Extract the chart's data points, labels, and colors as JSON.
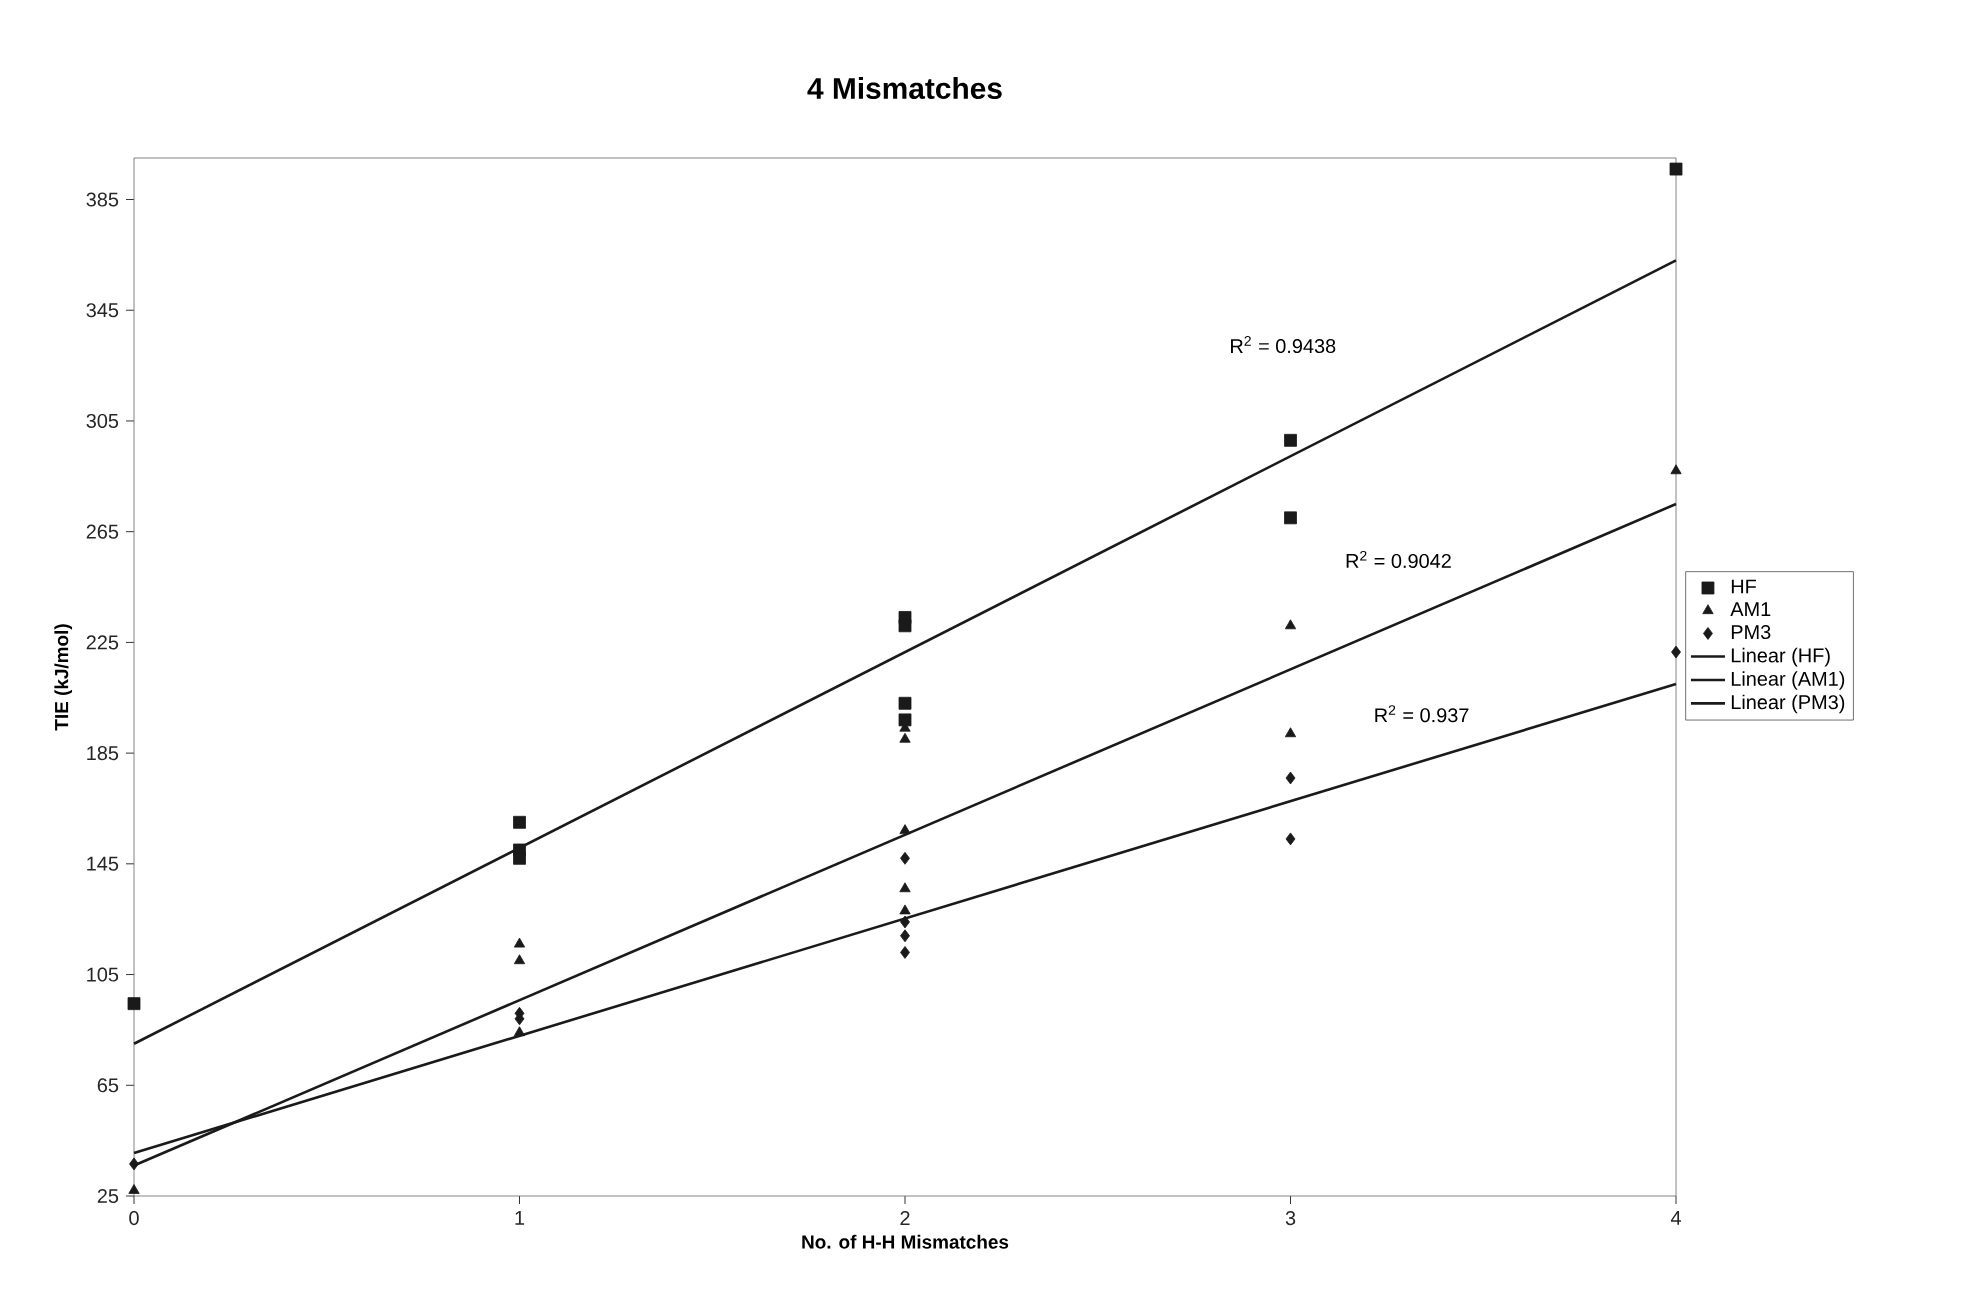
{
  "chart_data": {
    "type": "scatter",
    "title": "4 Mismatches",
    "xlabel": "No. of H-H Mismatches",
    "ylabel": "TIE (kJ/mol)",
    "xlim": [
      0,
      4
    ],
    "ylim": [
      25,
      400
    ],
    "xticks": [
      0,
      1,
      2,
      3,
      4
    ],
    "yticks": [
      25,
      65,
      105,
      145,
      185,
      225,
      265,
      305,
      345,
      385
    ],
    "grid": false,
    "legend": "right",
    "series": [
      {
        "name": "HF",
        "color": "#1a1a1a",
        "marker": "square",
        "x": [
          0,
          1,
          1,
          1,
          2,
          2,
          2,
          2,
          3,
          3,
          4
        ],
        "values": [
          94.5,
          160,
          150,
          147,
          234,
          231,
          203,
          197,
          298,
          270,
          396
        ]
      },
      {
        "name": "AM1",
        "color": "#1a1a1a",
        "marker": "triangle",
        "x": [
          0,
          1,
          1,
          1,
          2,
          2,
          2,
          2,
          2,
          3,
          3,
          4
        ],
        "values": [
          27,
          116,
          110,
          84,
          194,
          190,
          157,
          136,
          128,
          231,
          192,
          287
        ]
      },
      {
        "name": "PM3",
        "color": "#1a1a1a",
        "marker": "diamond",
        "x": [
          0,
          1,
          1,
          2,
          2,
          2,
          2,
          3,
          3,
          4
        ],
        "values": [
          36.6,
          91,
          89,
          147,
          124,
          119,
          113,
          176,
          154,
          221.5
        ]
      },
      {
        "name": "Linear (HF)",
        "type": "line",
        "color": "#1a1a1a",
        "marker": "none",
        "line_style": "solid",
        "x": [
          0,
          4
        ],
        "values": [
          80,
          363
        ]
      },
      {
        "name": "Linear (AM1)",
        "type": "line",
        "color": "#1a1a1a",
        "marker": "none",
        "line_style": "solid",
        "x": [
          0,
          4
        ],
        "values": [
          36,
          275
        ]
      },
      {
        "name": "Linear (PM3)",
        "type": "line",
        "color": "#1a1a1a",
        "marker": "none",
        "line_style": "solid",
        "x": [
          0,
          4
        ],
        "values": [
          40.5,
          210
        ]
      }
    ],
    "annotations": [
      "R$^{2}$ = 0.9438",
      "R$^{2}$ = 0.9042",
      "R$^{2}$ = 0.937"
    ]
  }
}
